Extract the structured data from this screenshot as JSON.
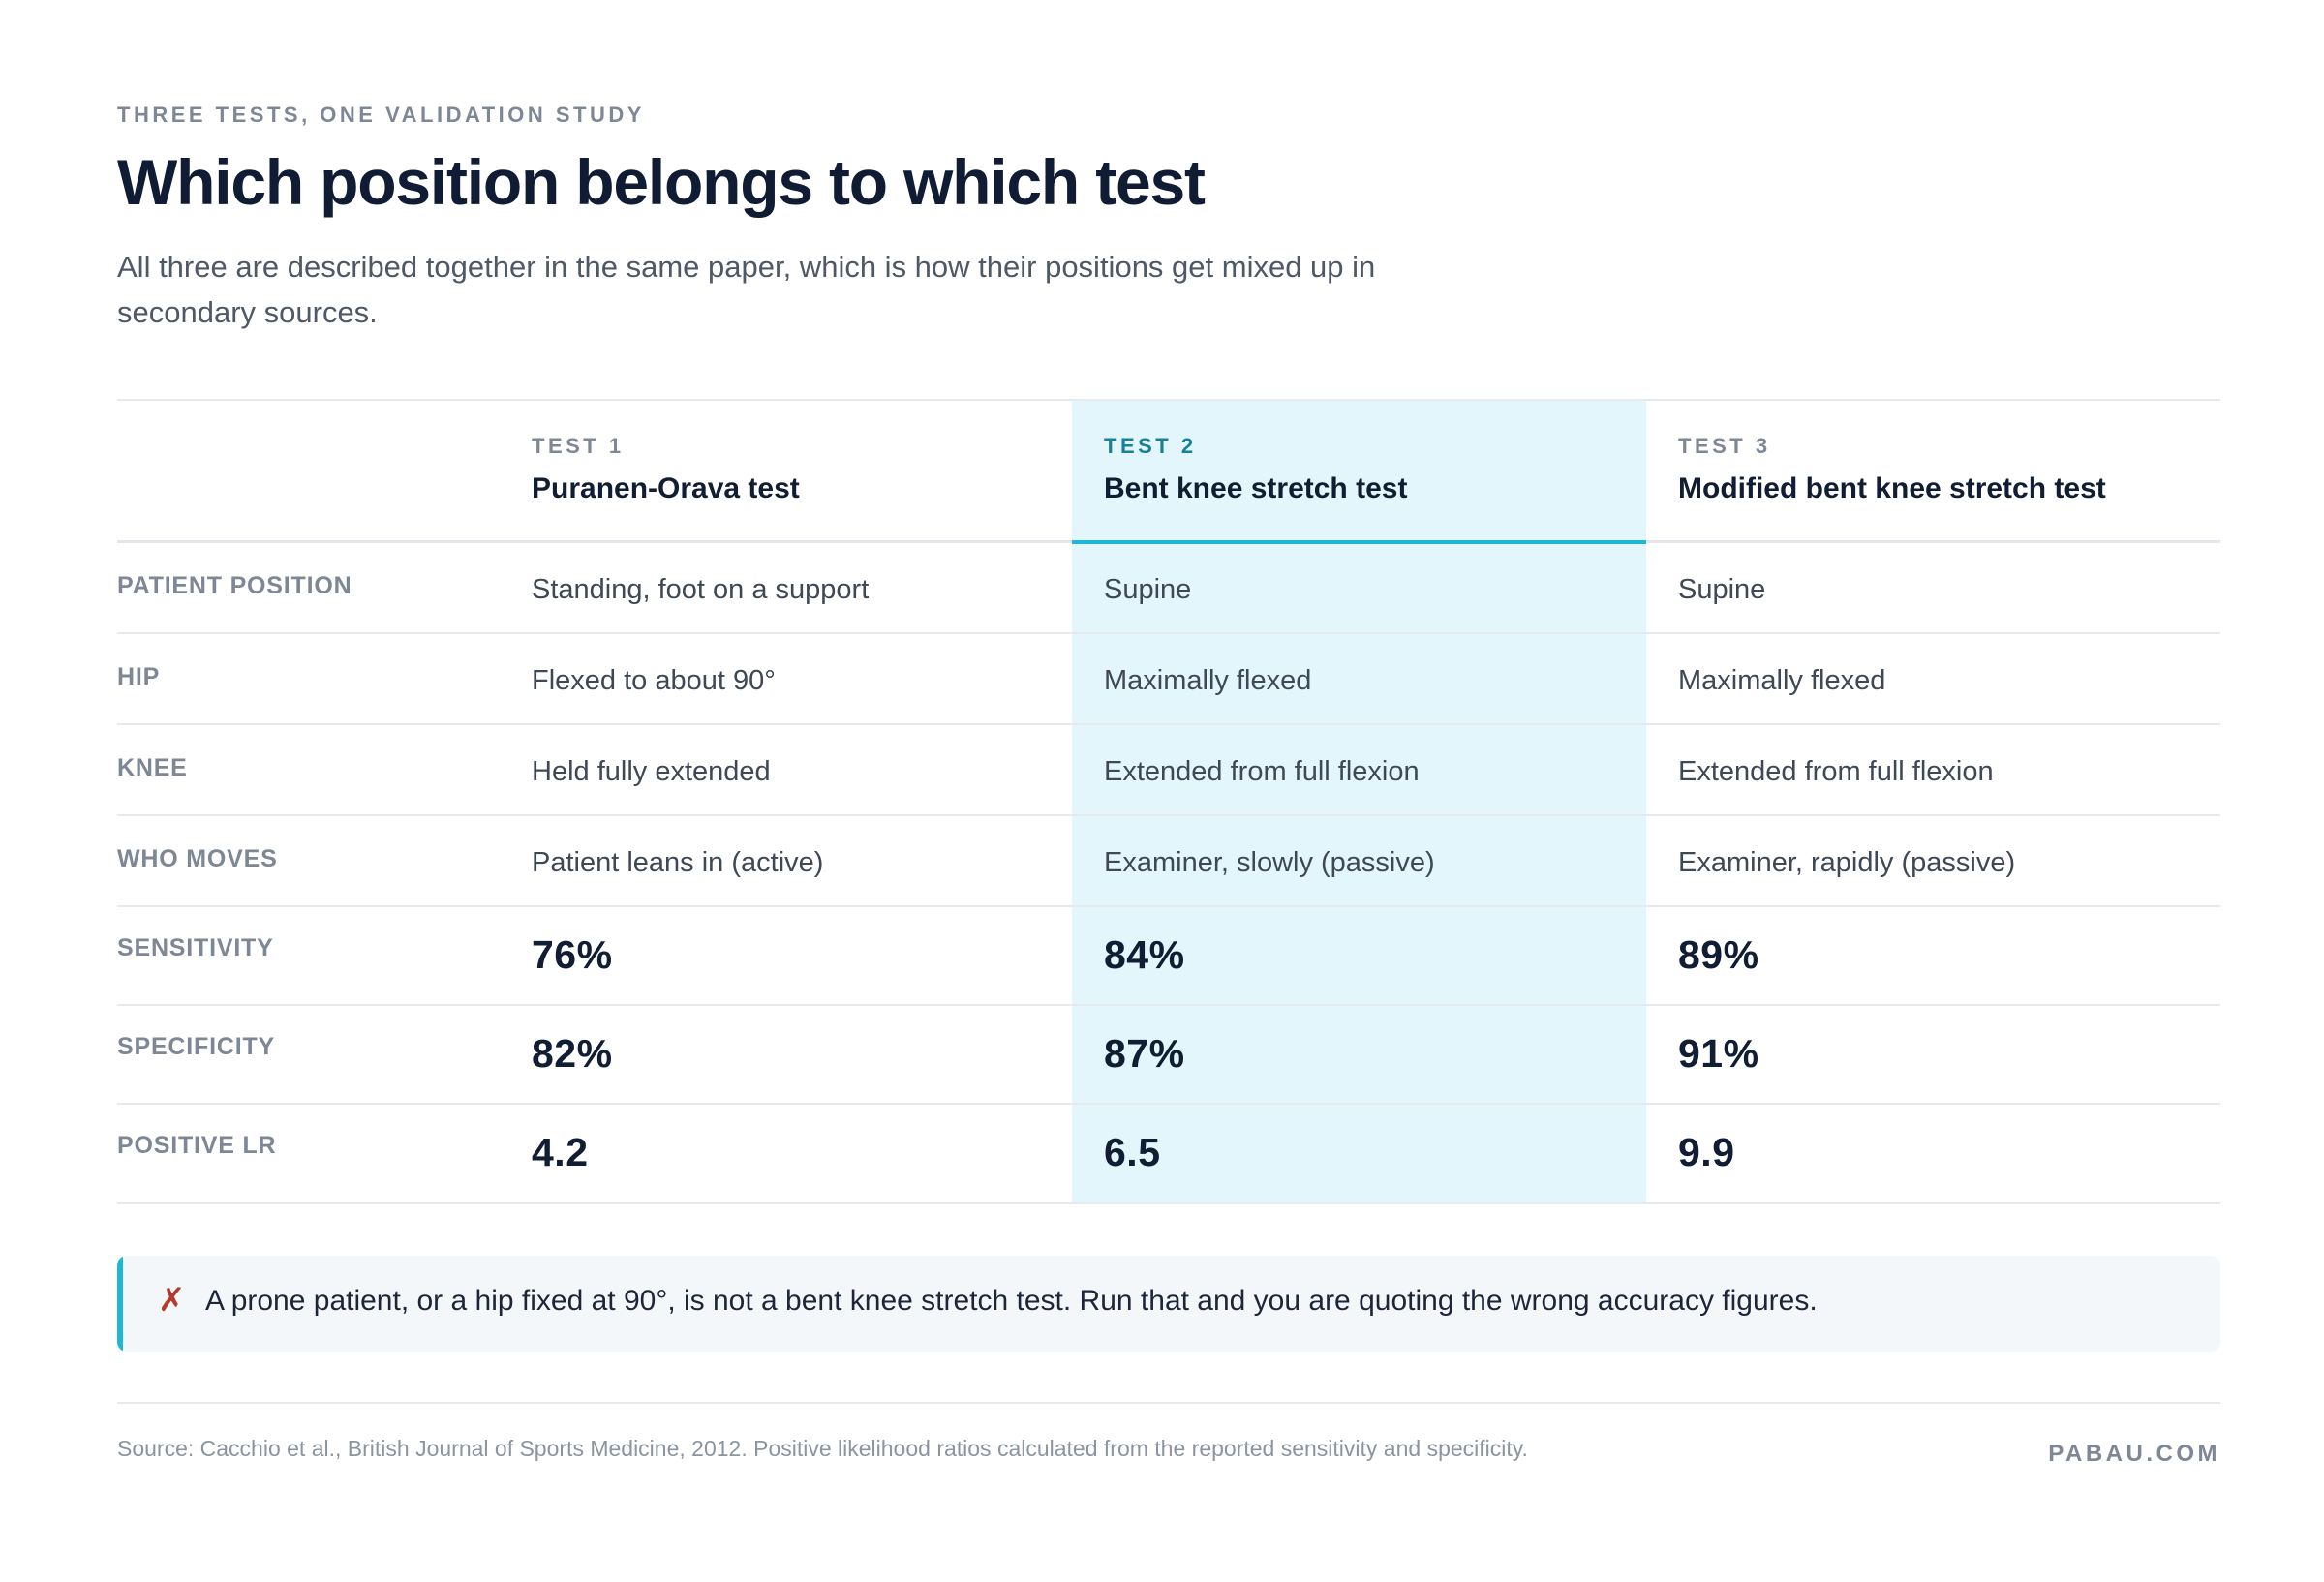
{
  "eyebrow": "THREE TESTS, ONE VALIDATION STUDY",
  "title": "Which position belongs to which test",
  "subtitle": "All three are described together in the same paper, which is how their positions get mixed up in secondary sources.",
  "columns": [
    {
      "label": "TEST 1",
      "name": "Puranen-Orava test"
    },
    {
      "label": "TEST 2",
      "name": "Bent knee stretch test"
    },
    {
      "label": "TEST 3",
      "name": "Modified bent knee stretch test"
    }
  ],
  "rows": [
    {
      "label": "PATIENT POSITION",
      "values": [
        "Standing, foot on a support",
        "Supine",
        "Supine"
      ]
    },
    {
      "label": "HIP",
      "values": [
        "Flexed to about 90°",
        "Maximally flexed",
        "Maximally flexed"
      ]
    },
    {
      "label": "KNEE",
      "values": [
        "Held fully extended",
        "Extended from full flexion",
        "Extended from full flexion"
      ]
    },
    {
      "label": "WHO MOVES",
      "values": [
        "Patient leans in (active)",
        "Examiner, slowly (passive)",
        "Examiner, rapidly (passive)"
      ]
    },
    {
      "label": "SENSITIVITY",
      "values": [
        "76%",
        "84%",
        "89%"
      ]
    },
    {
      "label": "SPECIFICITY",
      "values": [
        "82%",
        "87%",
        "91%"
      ]
    },
    {
      "label": "POSITIVE LR",
      "values": [
        "4.2",
        "6.5",
        "9.9"
      ]
    }
  ],
  "callout": {
    "icon": "cross-mark-icon",
    "icon_glyph": "✗",
    "text": "A prone patient, or a hip fixed at 90°, is not a bent knee stretch test. Run that and you are quoting the wrong accuracy figures."
  },
  "source": "Source: Cacchio et al., British Journal of Sports Medicine, 2012. Positive likelihood ratios calculated from the reported sensitivity and specificity.",
  "brand": "PABAU.COM",
  "colors": {
    "accent": "#1eb7d6",
    "highlight_bg": "#e3f6fb",
    "cross": "#b33a2e"
  }
}
